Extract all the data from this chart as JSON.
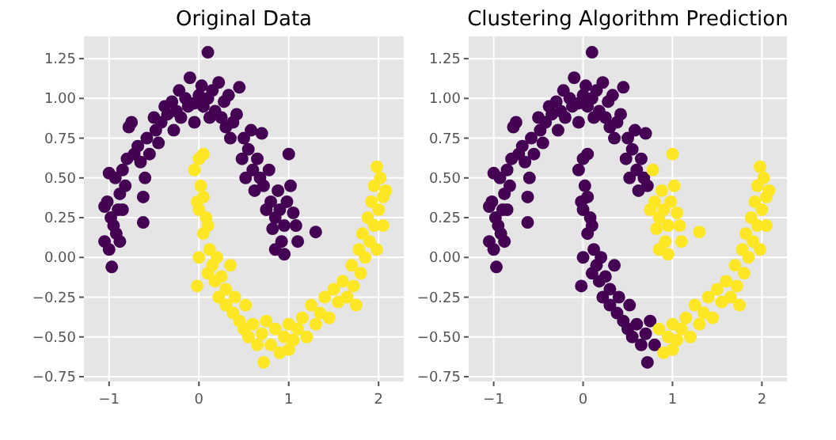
{
  "chart_data": [
    {
      "type": "scatter",
      "title": "Original Data",
      "xlim": [
        -1.28,
        2.28
      ],
      "ylim": [
        -0.78,
        1.39
      ],
      "xticks": [
        {
          "value": -1,
          "label": "−1"
        },
        0,
        1,
        2
      ],
      "yticks": [
        {
          "value": -0.75,
          "label": "−0.75"
        },
        {
          "value": -0.5,
          "label": "−0.50"
        },
        {
          "value": -0.25,
          "label": "−0.25"
        },
        {
          "value": 0,
          "label": "0.00"
        },
        {
          "value": 0.25,
          "label": "0.25"
        },
        {
          "value": 0.5,
          "label": "0.50"
        },
        {
          "value": 0.75,
          "label": "0.75"
        },
        {
          "value": 1,
          "label": "1.00"
        },
        {
          "value": 1.25,
          "label": "1.25"
        }
      ],
      "grid": true,
      "marker": "circle",
      "series": [
        {
          "color": "#440154",
          "x": [
            -1.05,
            -1.0,
            -0.97,
            -1.05,
            -1.02,
            -0.95,
            -0.92,
            -0.98,
            -0.9,
            -1.0,
            -0.93,
            -0.88,
            -0.85,
            -0.82,
            -0.85,
            -0.88,
            -0.8,
            -0.78,
            -0.75,
            -0.72,
            -0.68,
            -0.65,
            -0.62,
            -0.62,
            -0.6,
            -0.58,
            -0.55,
            -0.5,
            -0.48,
            -0.45,
            -0.42,
            -0.38,
            -0.35,
            -0.3,
            -0.28,
            -0.25,
            -0.22,
            -0.2,
            -0.15,
            -0.12,
            -0.1,
            -0.05,
            -0.05,
            0,
            0.03,
            0.05,
            0.1,
            0.1,
            0.12,
            0.15,
            0.18,
            0.22,
            0.25,
            0.28,
            0.3,
            0.33,
            0.35,
            0.38,
            0.42,
            0.45,
            0.48,
            0.5,
            0.52,
            0.55,
            0.58,
            0.6,
            0.62,
            0.65,
            0.68,
            0.7,
            0.72,
            0.75,
            0.78,
            0.8,
            0.82,
            0.85,
            0.85,
            0.88,
            0.9,
            0.92,
            0.95,
            0.95,
            0.98,
            1.0,
            1.02,
            1.05,
            1.08,
            1.1,
            1.3
          ],
          "values": [
            0.1,
            0.05,
            -0.06,
            0.32,
            0.35,
            0.2,
            0.15,
            0.25,
            0.3,
            0.53,
            0.5,
            0.4,
            0.55,
            0.45,
            0.3,
            0.1,
            0.62,
            0.82,
            0.85,
            0.65,
            0.7,
            0.6,
            0.22,
            0.38,
            0.5,
            0.75,
            0.65,
            0.88,
            0.8,
            0.72,
            0.85,
            0.95,
            0.9,
            0.98,
            0.8,
            0.92,
            1.05,
            0.88,
            1.0,
            0.95,
            1.13,
            0.97,
            0.85,
            1.02,
            1.08,
            0.95,
            1.29,
            1.0,
            0.88,
            1.05,
            0.92,
            1.1,
            0.88,
            0.98,
            0.82,
            1.02,
            0.75,
            0.85,
            0.9,
            1.07,
            0.62,
            0.75,
            0.5,
            0.68,
            0.8,
            0.55,
            0.42,
            0.62,
            0.5,
            0.78,
            0.45,
            0.3,
            0.55,
            0.35,
            0.18,
            0.25,
            0.05,
            0.42,
            0.3,
            0.1,
            0.02,
            0.2,
            0.35,
            0.65,
            0.45,
            0.28,
            0.2,
            0.1,
            0.16
          ]
        },
        {
          "color": "#fde725",
          "x": [
            -0.05,
            0,
            0.05,
            0.02,
            -0.02,
            0,
            0.05,
            0.08,
            0.05,
            0.1,
            0,
            -0.02,
            0.12,
            0.15,
            0.1,
            0.18,
            0.2,
            0.22,
            0.25,
            0.3,
            0.3,
            0.35,
            0.38,
            0.4,
            0.45,
            0.5,
            0.52,
            0.55,
            0.6,
            0.65,
            0.7,
            0.72,
            0.75,
            0.8,
            0.85,
            0.9,
            0.95,
            1,
            1,
            1.05,
            1.1,
            1.15,
            1.2,
            1.25,
            1.3,
            1.35,
            1.4,
            1.45,
            1.5,
            1.55,
            1.6,
            1.65,
            1.7,
            1.72,
            1.75,
            1.78,
            1.8,
            1.82,
            1.85,
            1.88,
            1.9,
            1.92,
            1.95,
            1.98,
            2,
            2.02,
            2.05,
            2.08,
            2.05,
            1.98,
            1.95
          ],
          "values": [
            0.55,
            0.62,
            0.65,
            0.45,
            0.35,
            0.3,
            0.38,
            0.25,
            0.15,
            0.2,
            0,
            -0.18,
            0.05,
            -0.05,
            -0.1,
            -0.15,
            0,
            -0.25,
            -0.12,
            -0.3,
            -0.2,
            -0.05,
            -0.35,
            -0.25,
            -0.4,
            -0.45,
            -0.3,
            -0.5,
            -0.42,
            -0.55,
            -0.48,
            -0.66,
            -0.4,
            -0.55,
            -0.45,
            -0.6,
            -0.5,
            -0.58,
            -0.42,
            -0.52,
            -0.45,
            -0.38,
            -0.5,
            -0.3,
            -0.42,
            -0.35,
            -0.25,
            -0.38,
            -0.2,
            -0.28,
            -0.15,
            -0.25,
            -0.05,
            -0.18,
            -0.3,
            0.05,
            -0.1,
            0.15,
            0,
            0.25,
            0.1,
            0.35,
            0.45,
            0.57,
            0.3,
            0.5,
            0.38,
            0.42,
            0.2,
            0.05,
            0.2
          ]
        }
      ]
    },
    {
      "type": "scatter",
      "title": "Clustering Algorithm Prediction",
      "xlim": [
        -1.28,
        2.28
      ],
      "ylim": [
        -0.78,
        1.39
      ],
      "xticks": [
        {
          "value": -1,
          "label": "−1"
        },
        0,
        1,
        2
      ],
      "yticks": [
        {
          "value": -0.75,
          "label": "−0.75"
        },
        {
          "value": -0.5,
          "label": "−0.50"
        },
        {
          "value": -0.25,
          "label": "−0.25"
        },
        {
          "value": 0,
          "label": "0.00"
        },
        {
          "value": 0.25,
          "label": "0.25"
        },
        {
          "value": 0.5,
          "label": "0.50"
        },
        {
          "value": 0.75,
          "label": "0.75"
        },
        {
          "value": 1,
          "label": "1.00"
        },
        {
          "value": 1.25,
          "label": "1.25"
        }
      ],
      "grid": true,
      "marker": "circle",
      "series": [
        {
          "color": "#440154",
          "x": [
            -1.05,
            -1.0,
            -0.97,
            -1.05,
            -1.02,
            -0.95,
            -0.92,
            -0.98,
            -0.9,
            -1.0,
            -0.93,
            -0.88,
            -0.85,
            -0.82,
            -0.85,
            -0.88,
            -0.8,
            -0.78,
            -0.75,
            -0.72,
            -0.68,
            -0.65,
            -0.62,
            -0.62,
            -0.6,
            -0.58,
            -0.55,
            -0.5,
            -0.48,
            -0.45,
            -0.42,
            -0.38,
            -0.35,
            -0.3,
            -0.28,
            -0.25,
            -0.22,
            -0.2,
            -0.15,
            -0.12,
            -0.1,
            -0.05,
            -0.05,
            0,
            0.03,
            0.05,
            0.1,
            0.1,
            0.12,
            0.15,
            0.18,
            0.22,
            0.25,
            0.28,
            0.3,
            0.33,
            0.35,
            0.38,
            0.42,
            0.45,
            0.48,
            0.5,
            0.52,
            0.55,
            0.58,
            0.6,
            0.62,
            0.65,
            0.68,
            0.7,
            0.72,
            -0.05,
            0,
            0.05,
            0.02,
            -0.02,
            0,
            0.05,
            0.08,
            0.05,
            0.1,
            0,
            -0.02,
            0.12,
            0.15,
            0.1,
            0.18,
            0.2,
            0.22,
            0.25,
            0.3,
            0.3,
            0.35,
            0.38,
            0.4,
            0.45,
            0.5,
            0.52,
            0.55,
            0.6,
            0.65,
            0.7,
            0.72,
            0.75,
            0.8
          ],
          "values": [
            0.1,
            0.05,
            -0.06,
            0.32,
            0.35,
            0.2,
            0.15,
            0.25,
            0.3,
            0.53,
            0.5,
            0.4,
            0.55,
            0.45,
            0.3,
            0.1,
            0.62,
            0.82,
            0.85,
            0.65,
            0.7,
            0.6,
            0.22,
            0.38,
            0.5,
            0.75,
            0.65,
            0.88,
            0.8,
            0.72,
            0.85,
            0.95,
            0.9,
            0.98,
            0.8,
            0.92,
            1.05,
            0.88,
            1.0,
            0.95,
            1.13,
            0.97,
            0.85,
            1.02,
            1.08,
            0.95,
            1.29,
            1.0,
            0.88,
            1.05,
            0.92,
            1.1,
            0.88,
            0.98,
            0.82,
            1.02,
            0.75,
            0.85,
            0.9,
            1.07,
            0.62,
            0.75,
            0.5,
            0.68,
            0.8,
            0.55,
            0.42,
            0.62,
            0.5,
            0.78,
            0.45,
            0.55,
            0.62,
            0.65,
            0.45,
            0.35,
            0.3,
            0.38,
            0.25,
            0.15,
            0.2,
            0,
            -0.18,
            0.05,
            -0.05,
            -0.1,
            -0.15,
            0,
            -0.25,
            -0.12,
            -0.3,
            -0.2,
            -0.05,
            -0.35,
            -0.25,
            -0.4,
            -0.45,
            -0.3,
            -0.5,
            -0.42,
            -0.55,
            -0.48,
            -0.66,
            -0.4,
            -0.55
          ]
        },
        {
          "color": "#fde725",
          "x": [
            0.75,
            0.78,
            0.8,
            0.82,
            0.85,
            0.85,
            0.88,
            0.9,
            0.92,
            0.95,
            0.95,
            0.98,
            1.0,
            1.02,
            1.05,
            1.08,
            1.1,
            1.3,
            0.85,
            0.9,
            0.95,
            1,
            1,
            1.05,
            1.1,
            1.15,
            1.2,
            1.25,
            1.3,
            1.35,
            1.4,
            1.45,
            1.5,
            1.55,
            1.6,
            1.65,
            1.7,
            1.72,
            1.75,
            1.78,
            1.8,
            1.82,
            1.85,
            1.88,
            1.9,
            1.92,
            1.95,
            1.98,
            2,
            2.02,
            2.05,
            2.08,
            2.05,
            1.98,
            1.95
          ],
          "values": [
            0.3,
            0.55,
            0.35,
            0.18,
            0.25,
            0.05,
            0.42,
            0.3,
            0.1,
            0.02,
            0.2,
            0.35,
            0.65,
            0.45,
            0.28,
            0.2,
            0.1,
            0.16,
            -0.45,
            -0.6,
            -0.5,
            -0.58,
            -0.42,
            -0.52,
            -0.45,
            -0.38,
            -0.5,
            -0.3,
            -0.42,
            -0.35,
            -0.25,
            -0.38,
            -0.2,
            -0.28,
            -0.15,
            -0.25,
            -0.05,
            -0.18,
            -0.3,
            0.05,
            -0.1,
            0.15,
            0,
            0.25,
            0.1,
            0.35,
            0.45,
            0.57,
            0.3,
            0.5,
            0.38,
            0.42,
            0.2,
            0.05,
            0.2
          ]
        }
      ]
    }
  ]
}
